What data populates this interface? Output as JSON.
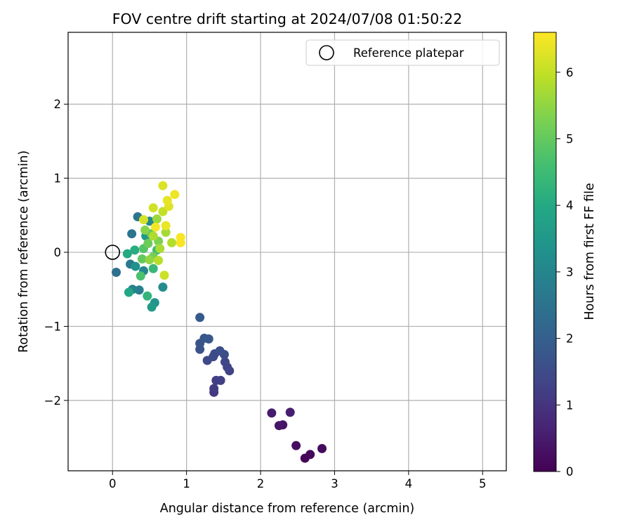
{
  "chart_data": {
    "type": "scatter",
    "title": "FOV centre drift starting at 2024/07/08 01:50:22",
    "xlabel": "Angular distance from reference (arcmin)",
    "ylabel": "Rotation from reference (arcmin)",
    "xlim": [
      -0.6,
      5.32
    ],
    "ylim": [
      -2.95,
      2.97
    ],
    "xticks": [
      0,
      1,
      2,
      3,
      4,
      5
    ],
    "xtick_labels": [
      "0",
      "1",
      "2",
      "3",
      "4",
      "5"
    ],
    "yticks": [
      -2,
      -1,
      0,
      1,
      2
    ],
    "ytick_labels": [
      "−2",
      "−1",
      "0",
      "1",
      "2"
    ],
    "grid": true,
    "colormap": "viridis",
    "colorbar": {
      "label": "Hours from first FF file",
      "range": [
        0,
        6.6
      ],
      "ticks": [
        0,
        1,
        2,
        3,
        4,
        5,
        6
      ],
      "tick_labels": [
        "0",
        "1",
        "2",
        "3",
        "4",
        "5",
        "6"
      ]
    },
    "legend": {
      "position": "top-right",
      "entries": [
        "Reference platepar"
      ]
    },
    "reference_point": {
      "x": 0,
      "y": 0
    },
    "series": [
      {
        "name": "FOV centre",
        "points": [
          {
            "x": 2.6,
            "y": -2.78,
            "c": 0.1
          },
          {
            "x": 2.67,
            "y": -2.73,
            "c": 0.15
          },
          {
            "x": 2.83,
            "y": -2.65,
            "c": 0.2
          },
          {
            "x": 2.48,
            "y": -2.61,
            "c": 0.25
          },
          {
            "x": 2.3,
            "y": -2.33,
            "c": 0.35
          },
          {
            "x": 2.25,
            "y": -2.34,
            "c": 0.4
          },
          {
            "x": 2.15,
            "y": -2.17,
            "c": 0.5
          },
          {
            "x": 2.4,
            "y": -2.16,
            "c": 0.55
          },
          {
            "x": 1.37,
            "y": -1.89,
            "c": 1.1
          },
          {
            "x": 1.37,
            "y": -1.84,
            "c": 1.15
          },
          {
            "x": 1.4,
            "y": -1.73,
            "c": 1.2
          },
          {
            "x": 1.46,
            "y": -1.73,
            "c": 1.25
          },
          {
            "x": 1.58,
            "y": -1.6,
            "c": 1.3
          },
          {
            "x": 1.55,
            "y": -1.55,
            "c": 1.35
          },
          {
            "x": 1.52,
            "y": -1.48,
            "c": 1.4
          },
          {
            "x": 1.28,
            "y": -1.46,
            "c": 1.45
          },
          {
            "x": 1.36,
            "y": -1.41,
            "c": 1.5
          },
          {
            "x": 1.38,
            "y": -1.37,
            "c": 1.5
          },
          {
            "x": 1.51,
            "y": -1.38,
            "c": 1.55
          },
          {
            "x": 1.45,
            "y": -1.33,
            "c": 1.6
          },
          {
            "x": 1.18,
            "y": -1.31,
            "c": 1.65
          },
          {
            "x": 1.18,
            "y": -1.23,
            "c": 1.7
          },
          {
            "x": 1.24,
            "y": -1.16,
            "c": 1.75
          },
          {
            "x": 1.3,
            "y": -1.17,
            "c": 1.8
          },
          {
            "x": 1.18,
            "y": -0.88,
            "c": 1.85
          },
          {
            "x": 0.05,
            "y": -0.27,
            "c": 2.4
          },
          {
            "x": 0.26,
            "y": 0.25,
            "c": 2.55
          },
          {
            "x": 0.34,
            "y": 0.48,
            "c": 2.6
          },
          {
            "x": 0.24,
            "y": -0.16,
            "c": 2.7
          },
          {
            "x": 0.36,
            "y": -0.51,
            "c": 2.8
          },
          {
            "x": 0.27,
            "y": -0.5,
            "c": 2.9
          },
          {
            "x": 0.42,
            "y": -0.25,
            "c": 3.0
          },
          {
            "x": 0.5,
            "y": 0.42,
            "c": 3.1
          },
          {
            "x": 0.68,
            "y": -0.47,
            "c": 3.2
          },
          {
            "x": 0.57,
            "y": -0.68,
            "c": 3.4
          },
          {
            "x": 0.53,
            "y": -0.74,
            "c": 3.6
          },
          {
            "x": 0.31,
            "y": -0.19,
            "c": 3.3
          },
          {
            "x": 0.45,
            "y": 0.22,
            "c": 3.5
          },
          {
            "x": 0.22,
            "y": -0.54,
            "c": 3.9
          },
          {
            "x": 0.2,
            "y": -0.02,
            "c": 4.0
          },
          {
            "x": 0.3,
            "y": 0.03,
            "c": 4.1
          },
          {
            "x": 0.47,
            "y": -0.59,
            "c": 4.3
          },
          {
            "x": 0.55,
            "y": -0.22,
            "c": 4.4
          },
          {
            "x": 0.6,
            "y": 0.03,
            "c": 4.5
          },
          {
            "x": 0.38,
            "y": -0.32,
            "c": 4.7
          },
          {
            "x": 0.42,
            "y": 0.05,
            "c": 4.8
          },
          {
            "x": 0.52,
            "y": 0.25,
            "c": 4.9
          },
          {
            "x": 0.4,
            "y": -0.09,
            "c": 5.0
          },
          {
            "x": 0.48,
            "y": 0.12,
            "c": 5.1
          },
          {
            "x": 0.55,
            "y": -0.06,
            "c": 5.2
          },
          {
            "x": 0.62,
            "y": 0.15,
            "c": 5.3
          },
          {
            "x": 0.44,
            "y": 0.3,
            "c": 5.4
          },
          {
            "x": 0.5,
            "y": -0.1,
            "c": 5.5
          },
          {
            "x": 0.6,
            "y": 0.45,
            "c": 5.6
          },
          {
            "x": 0.72,
            "y": 0.27,
            "c": 5.7
          },
          {
            "x": 0.64,
            "y": 0.05,
            "c": 5.75
          },
          {
            "x": 0.55,
            "y": 0.22,
            "c": 5.8
          },
          {
            "x": 0.8,
            "y": 0.13,
            "c": 5.85
          },
          {
            "x": 0.62,
            "y": -0.11,
            "c": 5.9
          },
          {
            "x": 0.68,
            "y": 0.55,
            "c": 6.0
          },
          {
            "x": 0.7,
            "y": -0.31,
            "c": 6.1
          },
          {
            "x": 0.55,
            "y": 0.6,
            "c": 6.15
          },
          {
            "x": 0.42,
            "y": 0.44,
            "c": 6.2
          },
          {
            "x": 0.68,
            "y": 0.9,
            "c": 6.25
          },
          {
            "x": 0.76,
            "y": 0.62,
            "c": 6.3
          },
          {
            "x": 0.74,
            "y": 0.7,
            "c": 6.35
          },
          {
            "x": 0.72,
            "y": 0.36,
            "c": 6.4
          },
          {
            "x": 0.84,
            "y": 0.78,
            "c": 6.45
          },
          {
            "x": 0.58,
            "y": 0.34,
            "c": 6.5
          },
          {
            "x": 0.92,
            "y": 0.2,
            "c": 6.55
          },
          {
            "x": 0.92,
            "y": 0.13,
            "c": 6.55
          }
        ]
      }
    ]
  }
}
